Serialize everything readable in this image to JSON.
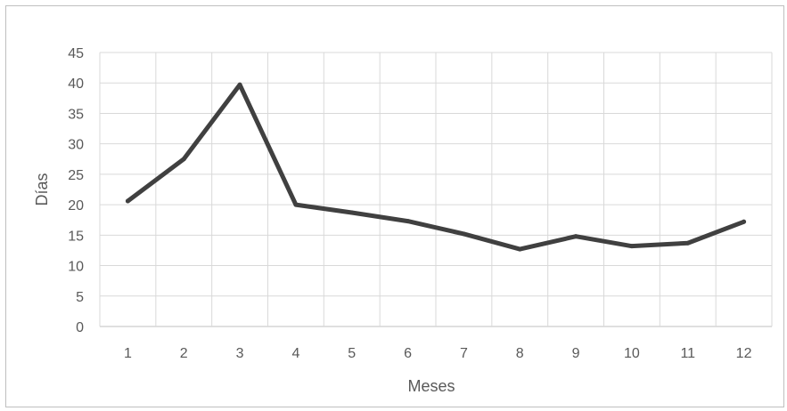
{
  "chart_data": {
    "type": "line",
    "title": "",
    "xlabel": "Meses",
    "ylabel": "Días",
    "categories": [
      "1",
      "2",
      "3",
      "4",
      "5",
      "6",
      "7",
      "8",
      "9",
      "10",
      "11",
      "12"
    ],
    "series": [
      {
        "values": [
          20.6,
          27.5,
          39.7,
          20.0,
          18.7,
          17.3,
          15.2,
          12.7,
          14.8,
          13.2,
          13.7,
          17.2
        ]
      }
    ],
    "ylim": [
      0,
      45
    ],
    "yticks": [
      "0",
      "5",
      "10",
      "15",
      "20",
      "25",
      "30",
      "35",
      "40",
      "45"
    ],
    "grid": true,
    "legend": "none",
    "colors": {
      "line": "#404040",
      "grid": "#d9d9d9",
      "text": "#595959"
    }
  }
}
